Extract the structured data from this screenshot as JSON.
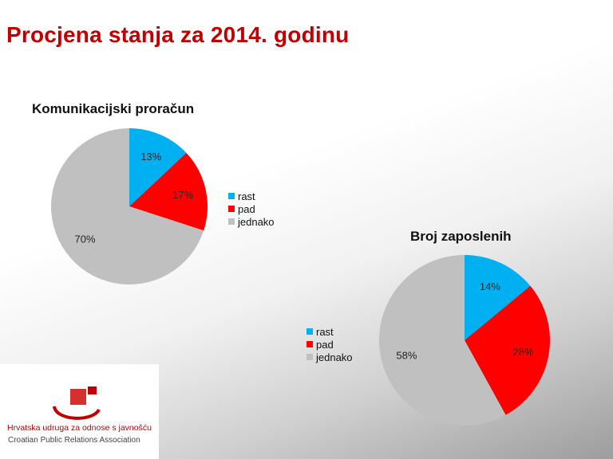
{
  "slide": {
    "title": "Procjena stanja za 2014. godinu"
  },
  "chart_data": [
    {
      "type": "pie",
      "title": "Komunikacijski proračun",
      "categories": [
        "rast",
        "pad",
        "jednako"
      ],
      "values": [
        13,
        17,
        70
      ],
      "value_labels": [
        "13%",
        "17%",
        "70%"
      ],
      "colors": [
        "#00b0f0",
        "#ff0000",
        "#c0c0c0"
      ],
      "legend_placement": "right"
    },
    {
      "type": "pie",
      "title": "Broj zaposlenih",
      "categories": [
        "rast",
        "pad",
        "jednako"
      ],
      "values": [
        14,
        28,
        58
      ],
      "value_labels": [
        "14%",
        "28%",
        "58%"
      ],
      "colors": [
        "#00b0f0",
        "#ff0000",
        "#c0c0c0"
      ],
      "legend_placement": "left"
    }
  ],
  "logo": {
    "line1": "Hrvatska udruga za odnose s javnošću",
    "line2": "Croatian Public Relations Association",
    "mark_colors": [
      "#c00000",
      "#d4302d"
    ]
  }
}
